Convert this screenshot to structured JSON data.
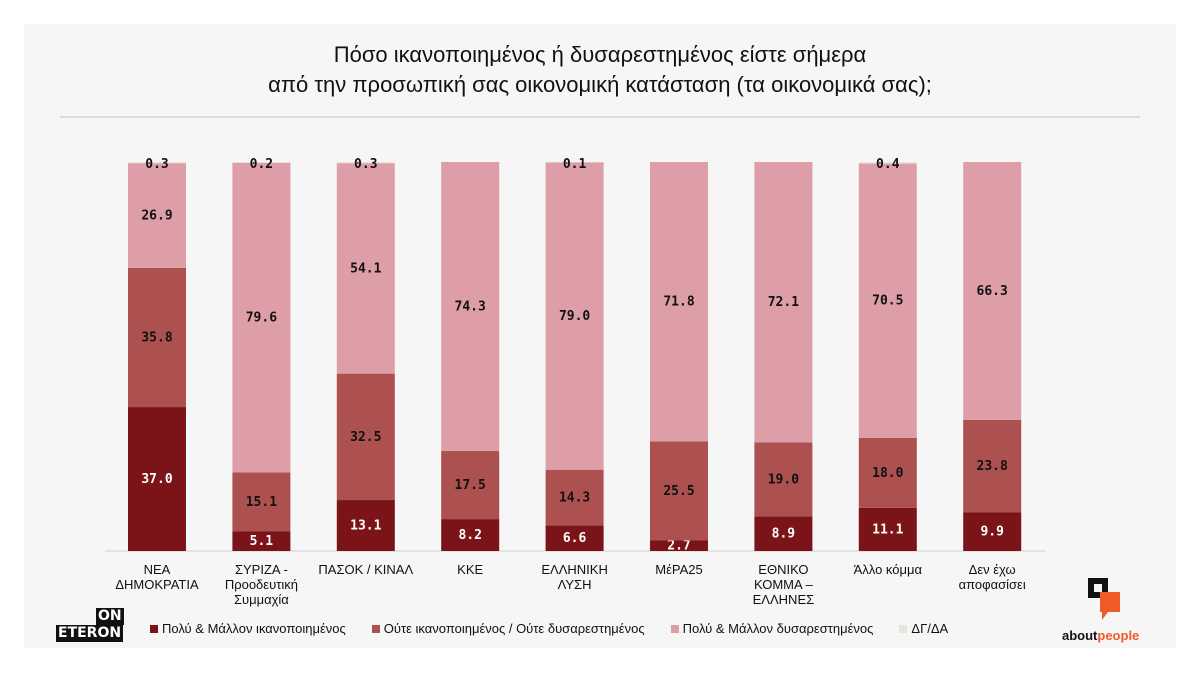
{
  "title_lines": [
    "Πόσο ικανοποιημένος ή δυσαρεστημένος είστε σήμερα",
    "από την προσωπική σας οικονομική κατάσταση (τα οικονομικά σας);"
  ],
  "chart_data": {
    "type": "bar",
    "stacked": true,
    "title": "Πόσο ικανοποιημένος ή δυσαρεστημένος είστε σήμερα από την προσωπική σας οικονομική κατάσταση (τα οικονομικά σας);",
    "categories": [
      "ΝΕΑ ΔΗΜΟΚΡΑΤΙΑ",
      "ΣΥΡΙΖΑ - Προοδευτική Συμμαχία",
      "ΠΑΣΟΚ / ΚΙΝΑΛ",
      "ΚΚΕ",
      "ΕΛΛΗΝΙΚΗ ΛΥΣΗ",
      "ΜέΡΑ25",
      "ΕΘΝΙΚΟ ΚΟΜΜΑ – ΕΛΛΗΝΕΣ",
      "Άλλο κόμμα",
      "Δεν έχω αποφασίσει"
    ],
    "category_lines": [
      [
        "ΝΕΑ",
        "ΔΗΜΟΚΡΑΤΙΑ"
      ],
      [
        "ΣΥΡΙΖΑ -",
        "Προοδευτική",
        "Συμμαχία"
      ],
      [
        "ΠΑΣΟΚ / ΚΙΝΑΛ"
      ],
      [
        "ΚΚΕ"
      ],
      [
        "ΕΛΛΗΝΙΚΗ",
        "ΛΥΣΗ"
      ],
      [
        "ΜέΡΑ25"
      ],
      [
        "ΕΘΝΙΚΟ",
        "ΚΟΜΜΑ –",
        "ΕΛΛΗΝΕΣ"
      ],
      [
        "Άλλο κόμμα"
      ],
      [
        "Δεν έχω",
        "αποφασίσει"
      ]
    ],
    "series": [
      {
        "name": "Πολύ & Μάλλον ικανοποιημένος",
        "color": "#7b1418",
        "label_color": "#ffffff",
        "values": [
          37.0,
          5.1,
          13.1,
          8.2,
          6.6,
          2.7,
          8.9,
          11.1,
          9.9
        ]
      },
      {
        "name": "Ούτε ικανοποιημένος / Ούτε δυσαρεστημένος",
        "color": "#ad5050",
        "label_color": "#111111",
        "values": [
          35.8,
          15.1,
          32.5,
          17.5,
          14.3,
          25.5,
          19.0,
          18.0,
          23.8
        ]
      },
      {
        "name": "Πολύ & Μάλλον δυσαρεστημένος",
        "color": "#de9ea7",
        "label_color": "#111111",
        "values": [
          26.9,
          79.6,
          54.1,
          74.3,
          79.0,
          71.8,
          72.1,
          70.5,
          66.3
        ]
      },
      {
        "name": "ΔΓ/ΔΑ",
        "color": "#ebe4dc",
        "label_color": "#111111",
        "values": [
          0.3,
          0.2,
          0.3,
          null,
          0.1,
          null,
          null,
          0.4,
          null
        ]
      }
    ],
    "ylim": [
      0,
      100
    ],
    "grid": false,
    "legend": "bottom"
  },
  "logos": {
    "left_top": "ON",
    "left_bottom": "ETERON",
    "right_a": "about",
    "right_b": "people"
  }
}
